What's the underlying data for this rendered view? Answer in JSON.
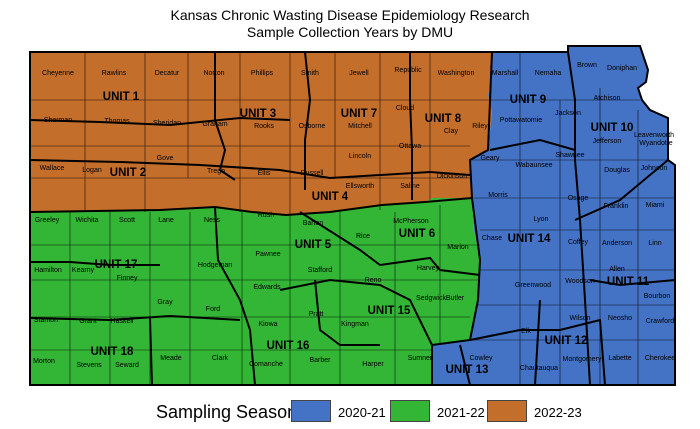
{
  "title": {
    "line1": "Kansas Chronic Wasting Disease Epidemiology Research",
    "line2": "Sample Collection Years by DMU"
  },
  "colors": {
    "season_2020_21": "#4472c4",
    "season_2021_22": "#33b635",
    "season_2022_23": "#c46e2c",
    "border": "#000000"
  },
  "legend": {
    "title": "Sampling Season",
    "items": [
      {
        "label": "2020-21",
        "color": "#4472c4"
      },
      {
        "label": "2021-22",
        "color": "#33b635"
      },
      {
        "label": "2022-23",
        "color": "#c46e2c"
      }
    ]
  },
  "units": [
    {
      "label": "UNIT 1",
      "season": "2022-23"
    },
    {
      "label": "UNIT 2",
      "season": "2022-23"
    },
    {
      "label": "UNIT 3",
      "season": "2022-23"
    },
    {
      "label": "UNIT 4",
      "season": "2022-23"
    },
    {
      "label": "UNIT 5",
      "season": "2021-22"
    },
    {
      "label": "UNIT 6",
      "season": "2021-22"
    },
    {
      "label": "UNIT 7",
      "season": "2022-23"
    },
    {
      "label": "UNIT 8",
      "season": "2022-23"
    },
    {
      "label": "UNIT 9",
      "season": "2020-21"
    },
    {
      "label": "UNIT 10",
      "season": "2020-21"
    },
    {
      "label": "UNIT 11",
      "season": "2020-21"
    },
    {
      "label": "UNIT 12",
      "season": "2020-21"
    },
    {
      "label": "UNIT 13",
      "season": "2020-21"
    },
    {
      "label": "UNIT 14",
      "season": "2020-21"
    },
    {
      "label": "UNIT 15",
      "season": "2021-22"
    },
    {
      "label": "UNIT 16",
      "season": "2021-22"
    },
    {
      "label": "UNIT 17",
      "season": "2021-22"
    },
    {
      "label": "UNIT 18",
      "season": "2021-22"
    }
  ],
  "counties": [
    "Cheyenne",
    "Rawlins",
    "Decatur",
    "Norton",
    "Phillips",
    "Smith",
    "Jewell",
    "Republic",
    "Washington",
    "Marshall",
    "Nemaha",
    "Brown",
    "Doniphan",
    "Sherman",
    "Thomas",
    "Sheridan",
    "Graham",
    "Rooks",
    "Osborne",
    "Mitchell",
    "Cloud",
    "Clay",
    "Riley",
    "Pottawatomie",
    "Jackson",
    "Atchison",
    "Jefferson",
    "Leavenworth",
    "Wyandotte",
    "Wallace",
    "Logan",
    "Gove",
    "Trego",
    "Ellis",
    "Russell",
    "Lincoln",
    "Ottawa",
    "Dickinson",
    "Geary",
    "Wabaunsee",
    "Shawnee",
    "Douglas",
    "Johnson",
    "Greeley",
    "Wichita",
    "Scott",
    "Lane",
    "Ness",
    "Rush",
    "Barton",
    "Ellsworth",
    "Saline",
    "Morris",
    "Osage",
    "Franklin",
    "Miami",
    "Hamilton",
    "Kearny",
    "Finney",
    "Hodgeman",
    "Pawnee",
    "Stafford",
    "Rice",
    "McPherson",
    "Marion",
    "Chase",
    "Lyon",
    "Coffey",
    "Anderson",
    "Linn",
    "Gray",
    "Ford",
    "Edwards",
    "Reno",
    "Harvey",
    "Butler",
    "Greenwood",
    "Woodson",
    "Allen",
    "Bourbon",
    "Stanton",
    "Grant",
    "Haskell",
    "Kiowa",
    "Pratt",
    "Kingman",
    "Sedgwick",
    "Elk",
    "Wilson",
    "Neosho",
    "Crawford",
    "Morton",
    "Stevens",
    "Seward",
    "Meade",
    "Clark",
    "Comanche",
    "Barber",
    "Harper",
    "Sumner",
    "Cowley",
    "Chautauqua",
    "Montgomery",
    "Labette",
    "Cherokee"
  ]
}
